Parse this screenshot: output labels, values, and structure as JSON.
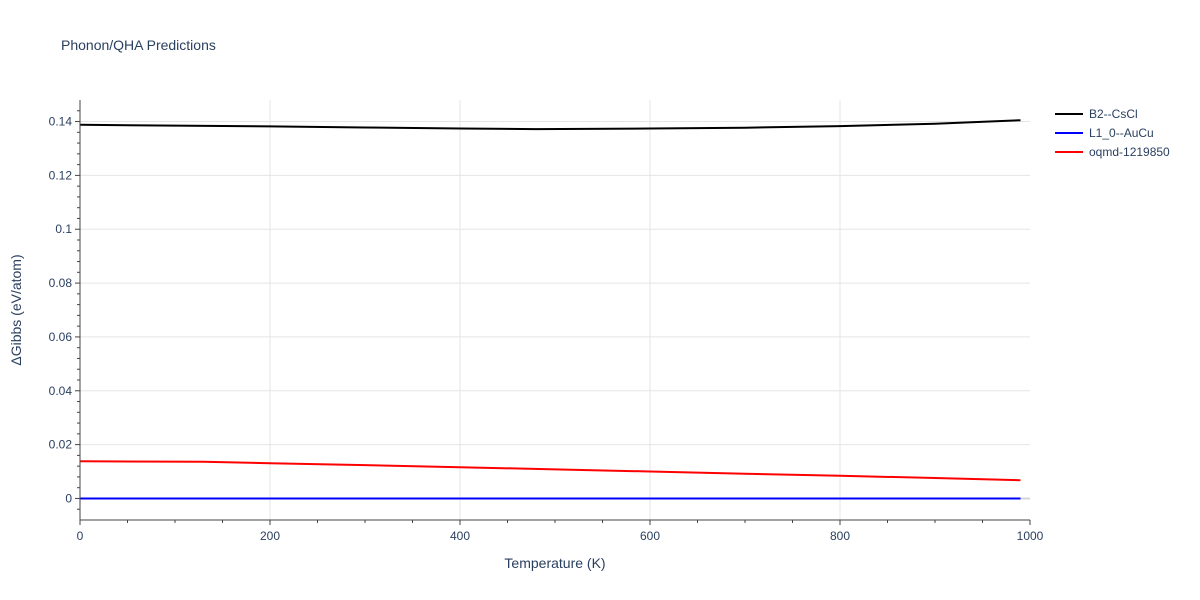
{
  "chart_data": {
    "type": "line",
    "title": "Phonon/QHA Predictions",
    "xlabel": "Temperature (K)",
    "ylabel": "ΔGibbs (eV/atom)",
    "xlim": [
      0,
      1000
    ],
    "ylim": [
      -0.008,
      0.148
    ],
    "x_ticks": [
      0,
      200,
      400,
      600,
      800,
      1000
    ],
    "x_tick_labels": [
      "0",
      "200",
      "400",
      "600",
      "800",
      "1000"
    ],
    "y_ticks": [
      0,
      0.02,
      0.04,
      0.06,
      0.08,
      0.1,
      0.12,
      0.14
    ],
    "y_tick_labels": [
      "0",
      "0.02",
      "0.04",
      "0.06",
      "0.08",
      "0.1",
      "0.12",
      "0.14"
    ],
    "grid": true,
    "legend_position": "top-right",
    "series": [
      {
        "name": "B2--CsCl",
        "color": "#000000",
        "x": [
          0,
          100,
          200,
          300,
          400,
          480,
          600,
          700,
          800,
          900,
          990
        ],
        "y": [
          0.1388,
          0.1385,
          0.1382,
          0.1378,
          0.1374,
          0.1372,
          0.1374,
          0.1377,
          0.1383,
          0.1392,
          0.1405
        ]
      },
      {
        "name": "L1_0--AuCu",
        "color": "#0000ff",
        "x": [
          0,
          200,
          400,
          600,
          800,
          990
        ],
        "y": [
          0,
          0,
          0,
          0,
          0,
          0
        ]
      },
      {
        "name": "oqmd-1219850",
        "color": "#ff0000",
        "x": [
          0,
          130,
          200,
          300,
          400,
          500,
          600,
          700,
          800,
          900,
          990
        ],
        "y": [
          0.0138,
          0.0136,
          0.0131,
          0.0124,
          0.0116,
          0.0108,
          0.01,
          0.0092,
          0.0084,
          0.0076,
          0.0068
        ]
      }
    ]
  }
}
